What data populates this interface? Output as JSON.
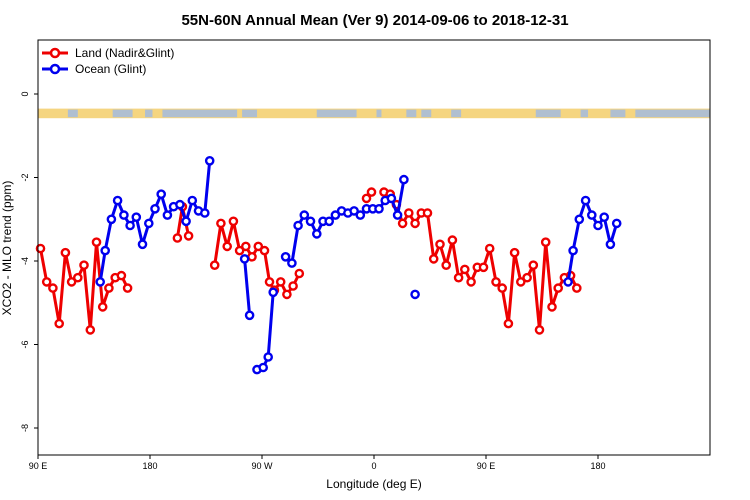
{
  "chart_data": {
    "type": "line",
    "title": "55N-60N Annual Mean (Ver 9)   2014-09-06 to 2018-12-31",
    "xlabel": "Longitude (deg E)",
    "ylabel": "XCO2 - MLO trend (ppm)",
    "xlim": [
      -90,
      180
    ],
    "ylim": [
      -9,
      1.3
    ],
    "x_ticks": [
      {
        "value": -90,
        "label": "90 E"
      },
      {
        "value": -45,
        "label": "180"
      },
      {
        "value": 0,
        "label": "90 W"
      },
      {
        "value": 45,
        "label": "0"
      },
      {
        "value": 90,
        "label": "90 E"
      },
      {
        "value": 135,
        "label": "180"
      }
    ],
    "y_ticks": [
      {
        "value": 0,
        "label": "0"
      },
      {
        "value": -2,
        "label": "-2"
      },
      {
        "value": -4,
        "label": "-4"
      },
      {
        "value": -6,
        "label": "-6"
      },
      {
        "value": -8,
        "label": "-8"
      }
    ],
    "legend_position": "top-left",
    "land_band": {
      "y_range": [
        -0.35,
        -0.58
      ],
      "colors": {
        "land": "#f5d580",
        "ocean": "#a9bcd8"
      }
    },
    "series": [
      {
        "name": "Land (Nadir&Glint)",
        "color": "#ee0000",
        "segments": [
          [
            [
              -89,
              -3.7
            ],
            [
              -86.5,
              -4.5
            ],
            [
              -84,
              -4.65
            ],
            [
              -81.5,
              -5.5
            ],
            [
              -79,
              -3.8
            ],
            [
              -76.5,
              -4.5
            ],
            [
              -74,
              -4.4
            ],
            [
              -71.5,
              -4.1
            ],
            [
              -69,
              -5.65
            ],
            [
              -66.5,
              -3.55
            ],
            [
              -64,
              -5.1
            ],
            [
              -61.5,
              -4.65
            ],
            [
              -59,
              -4.4
            ],
            [
              -56.5,
              -4.35
            ],
            [
              -54,
              -4.65
            ]
          ],
          [
            [
              -34,
              -3.45
            ],
            [
              -32,
              -2.7
            ],
            [
              -29.5,
              -3.4
            ]
          ],
          [
            [
              -19,
              -4.1
            ],
            [
              -16.5,
              -3.1
            ],
            [
              -14,
              -3.65
            ],
            [
              -11.5,
              -3.05
            ],
            [
              -9,
              -3.75
            ],
            [
              -6.5,
              -3.65
            ],
            [
              -4,
              -3.9
            ],
            [
              -1.5,
              -3.65
            ],
            [
              1,
              -3.75
            ],
            [
              3,
              -4.5
            ],
            [
              5,
              -4.7
            ],
            [
              7.5,
              -4.5
            ],
            [
              10,
              -4.8
            ],
            [
              12.5,
              -4.6
            ],
            [
              15,
              -4.3
            ]
          ],
          [
            [
              42,
              -2.5
            ],
            [
              44,
              -2.35
            ]
          ],
          [
            [
              49,
              -2.35
            ],
            [
              51.5,
              -2.4
            ],
            [
              54,
              -2.65
            ],
            [
              56.5,
              -3.1
            ],
            [
              59,
              -2.85
            ],
            [
              61.5,
              -3.1
            ],
            [
              64,
              -2.85
            ],
            [
              66.5,
              -2.85
            ],
            [
              69,
              -3.95
            ],
            [
              71.5,
              -3.6
            ],
            [
              74,
              -4.1
            ],
            [
              76.5,
              -3.5
            ],
            [
              79,
              -4.4
            ],
            [
              81.5,
              -4.2
            ],
            [
              84,
              -4.5
            ],
            [
              86.5,
              -4.15
            ],
            [
              89,
              -4.15
            ],
            [
              91.5,
              -3.7
            ],
            [
              94,
              -4.5
            ],
            [
              96.5,
              -4.65
            ],
            [
              99,
              -5.5
            ],
            [
              101.5,
              -3.8
            ],
            [
              104,
              -4.5
            ],
            [
              106.5,
              -4.4
            ],
            [
              109,
              -4.1
            ],
            [
              111.5,
              -5.65
            ],
            [
              114,
              -3.55
            ],
            [
              116.5,
              -5.1
            ],
            [
              119,
              -4.65
            ],
            [
              121.5,
              -4.4
            ],
            [
              124,
              -4.35
            ],
            [
              126.5,
              -4.65
            ]
          ]
        ]
      },
      {
        "name": "Ocean (Glint)",
        "color": "#0000ee",
        "segments": [
          [
            [
              -65,
              -4.5
            ],
            [
              -63,
              -3.75
            ],
            [
              -60.5,
              -3.0
            ],
            [
              -58,
              -2.55
            ],
            [
              -55.5,
              -2.9
            ],
            [
              -53,
              -3.15
            ],
            [
              -50.5,
              -2.95
            ],
            [
              -48,
              -3.6
            ],
            [
              -45.5,
              -3.1
            ],
            [
              -43,
              -2.75
            ],
            [
              -40.5,
              -2.4
            ],
            [
              -38,
              -2.9
            ],
            [
              -35.5,
              -2.7
            ],
            [
              -33,
              -2.65
            ],
            [
              -30.5,
              -3.05
            ],
            [
              -28,
              -2.55
            ],
            [
              -25.5,
              -2.8
            ],
            [
              -23,
              -2.85
            ],
            [
              -21,
              -1.6
            ]
          ],
          [
            [
              -7,
              -3.95
            ],
            [
              -5,
              -5.3
            ]
          ],
          [
            [
              -2,
              -6.6
            ],
            [
              0.5,
              -6.55
            ],
            [
              2.5,
              -6.3
            ],
            [
              4.5,
              -4.75
            ]
          ],
          [
            [
              9.5,
              -3.9
            ],
            [
              12,
              -4.05
            ],
            [
              14.5,
              -3.15
            ],
            [
              17,
              -2.9
            ],
            [
              19.5,
              -3.05
            ],
            [
              22,
              -3.35
            ],
            [
              24.5,
              -3.05
            ],
            [
              27,
              -3.05
            ],
            [
              29.5,
              -2.9
            ],
            [
              32,
              -2.8
            ],
            [
              34.5,
              -2.85
            ],
            [
              37,
              -2.8
            ],
            [
              39.5,
              -2.9
            ],
            [
              42,
              -2.75
            ],
            [
              44.5,
              -2.75
            ],
            [
              47,
              -2.75
            ],
            [
              49.5,
              -2.55
            ],
            [
              52,
              -2.5
            ],
            [
              54.5,
              -2.9
            ],
            [
              57,
              -2.05
            ]
          ],
          [
            [
              61.5,
              -4.8
            ]
          ],
          [
            [
              123,
              -4.5
            ],
            [
              125,
              -3.75
            ],
            [
              127.5,
              -3.0
            ],
            [
              130,
              -2.55
            ],
            [
              132.5,
              -2.9
            ],
            [
              135,
              -3.15
            ],
            [
              137.5,
              -2.95
            ],
            [
              140,
              -3.6
            ],
            [
              142.5,
              -3.1
            ]
          ]
        ]
      }
    ]
  }
}
